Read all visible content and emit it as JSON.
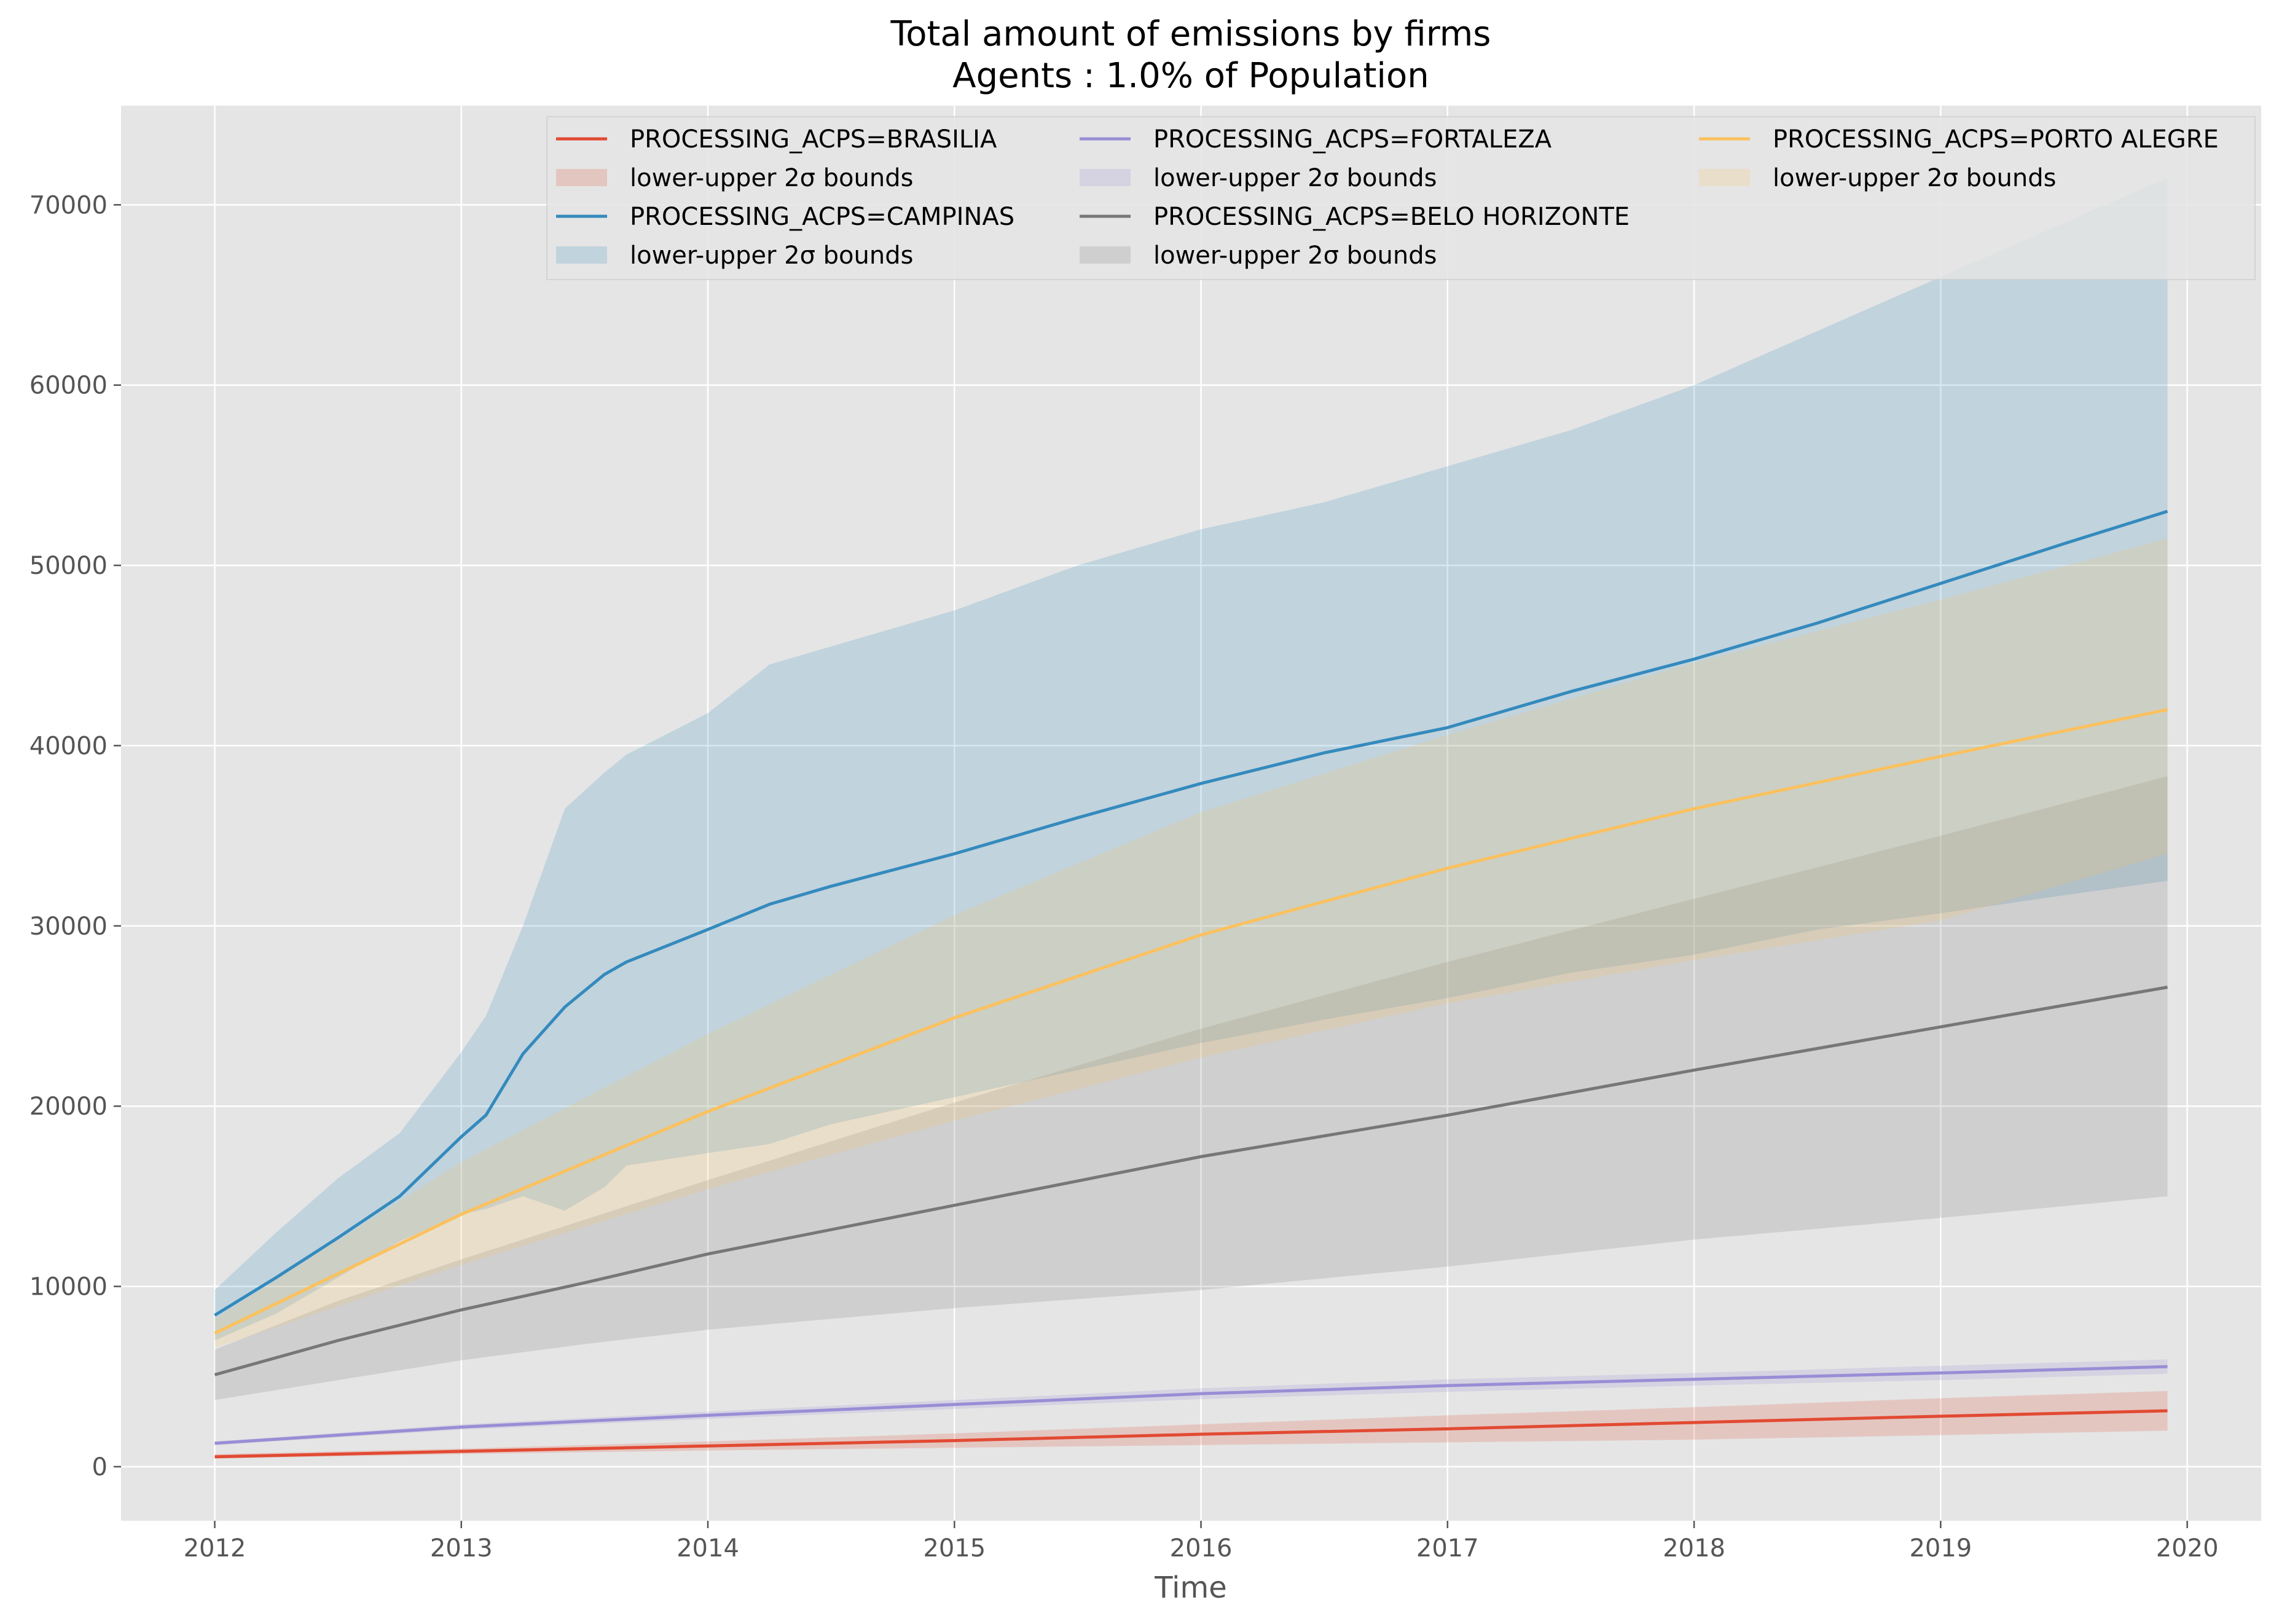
{
  "chart_data": {
    "type": "line",
    "title": "Total amount of emissions by firms",
    "subtitle": "Agents : 1.0% of Population",
    "xlabel": "Time",
    "ylabel": "",
    "xlim": [
      2011.62,
      2020.3
    ],
    "ylim": [
      -3000,
      75500
    ],
    "grid": true,
    "legend_position": "top-right",
    "x_ticks": [
      "2012",
      "2013",
      "2014",
      "2015",
      "2016",
      "2017",
      "2018",
      "2019",
      "2020"
    ],
    "y_ticks": [
      "0",
      "10000",
      "20000",
      "30000",
      "40000",
      "50000",
      "60000",
      "70000"
    ],
    "legend_entries": [
      "PROCESSING_ACPS=BRASILIA",
      "lower-upper 2σ bounds",
      "PROCESSING_ACPS=CAMPINAS",
      "lower-upper 2σ bounds",
      "PROCESSING_ACPS=FORTALEZA",
      "lower-upper 2σ bounds",
      "PROCESSING_ACPS=BELO HORIZONTE",
      "lower-upper 2σ bounds",
      "PROCESSING_ACPS=PORTO ALEGRE",
      "lower-upper 2σ bounds"
    ],
    "series": [
      {
        "name": "PROCESSING_ACPS=BRASILIA",
        "color": "#E24A33",
        "x": [
          2012.0,
          2013.0,
          2014.0,
          2015.0,
          2016.0,
          2017.0,
          2018.0,
          2019.0,
          2019.92
        ],
        "y": [
          550,
          850,
          1150,
          1450,
          1800,
          2100,
          2450,
          2800,
          3100
        ],
        "band_lower": [
          450,
          700,
          900,
          1050,
          1200,
          1350,
          1500,
          1750,
          2000
        ],
        "band_upper": [
          700,
          1000,
          1400,
          1850,
          2350,
          2850,
          3300,
          3800,
          4200
        ]
      },
      {
        "name": "PROCESSING_ACPS=CAMPINAS",
        "color": "#348ABD",
        "x": [
          2012.0,
          2012.25,
          2012.5,
          2012.75,
          2013.0,
          2013.1,
          2013.25,
          2013.42,
          2013.58,
          2013.67,
          2014.0,
          2014.25,
          2014.5,
          2015.0,
          2015.5,
          2016.0,
          2016.5,
          2017.0,
          2017.5,
          2018.0,
          2018.5,
          2019.0,
          2019.5,
          2019.92
        ],
        "y": [
          8400,
          10500,
          12700,
          15000,
          18300,
          19500,
          22900,
          25500,
          27300,
          28000,
          29800,
          31200,
          32200,
          34000,
          36000,
          37900,
          39600,
          41000,
          43000,
          44800,
          46800,
          49000,
          51200,
          53000
        ],
        "band_lower": [
          7000,
          8500,
          10500,
          12500,
          14000,
          14300,
          15000,
          14200,
          15500,
          16700,
          17400,
          17900,
          19000,
          20500,
          22000,
          23500,
          24800,
          26000,
          27400,
          28400,
          29800,
          30700,
          31700,
          32500
        ],
        "band_upper": [
          9800,
          13000,
          16000,
          18500,
          23000,
          25000,
          30000,
          36500,
          38500,
          39500,
          41800,
          44500,
          45500,
          47500,
          50000,
          52000,
          53500,
          55500,
          57500,
          60000,
          63000,
          66000,
          69000,
          71500
        ]
      },
      {
        "name": "PROCESSING_ACPS=FORTALEZA",
        "color": "#988ED5",
        "x": [
          2012.0,
          2013.0,
          2014.0,
          2015.0,
          2016.0,
          2017.0,
          2018.0,
          2019.0,
          2019.92
        ],
        "y": [
          1300,
          2200,
          2850,
          3450,
          4050,
          4500,
          4850,
          5200,
          5550
        ],
        "band_lower": [
          1200,
          2050,
          2650,
          3200,
          3750,
          4150,
          4500,
          4800,
          5150
        ],
        "band_upper": [
          1400,
          2350,
          3050,
          3700,
          4350,
          4850,
          5200,
          5600,
          5950
        ]
      },
      {
        "name": "PROCESSING_ACPS=BELO HORIZONTE",
        "color": "#777777",
        "x": [
          2012.0,
          2012.5,
          2013.0,
          2013.5,
          2014.0,
          2015.0,
          2016.0,
          2017.0,
          2018.0,
          2019.0,
          2019.92
        ],
        "y": [
          5100,
          7000,
          8700,
          10200,
          11800,
          14500,
          17200,
          19500,
          22000,
          24400,
          26600
        ],
        "band_lower": [
          3700,
          4800,
          5900,
          6800,
          7600,
          8800,
          9800,
          11100,
          12600,
          13800,
          15000
        ],
        "band_upper": [
          6500,
          9200,
          11500,
          13700,
          15900,
          20200,
          24300,
          28000,
          31500,
          35000,
          38300
        ]
      },
      {
        "name": "PROCESSING_ACPS=PORTO ALEGRE",
        "color": "#FBC15E",
        "x": [
          2012.0,
          2013.0,
          2014.0,
          2015.0,
          2016.0,
          2017.0,
          2018.0,
          2019.0,
          2019.92
        ],
        "y": [
          7400,
          14000,
          19700,
          24900,
          29500,
          33200,
          36500,
          39400,
          42000
        ],
        "band_lower": [
          6600,
          11200,
          15400,
          19200,
          22700,
          25700,
          28100,
          30300,
          34000
        ],
        "band_upper": [
          8200,
          16900,
          24000,
          30600,
          36300,
          40600,
          44600,
          48100,
          51500
        ]
      }
    ]
  }
}
